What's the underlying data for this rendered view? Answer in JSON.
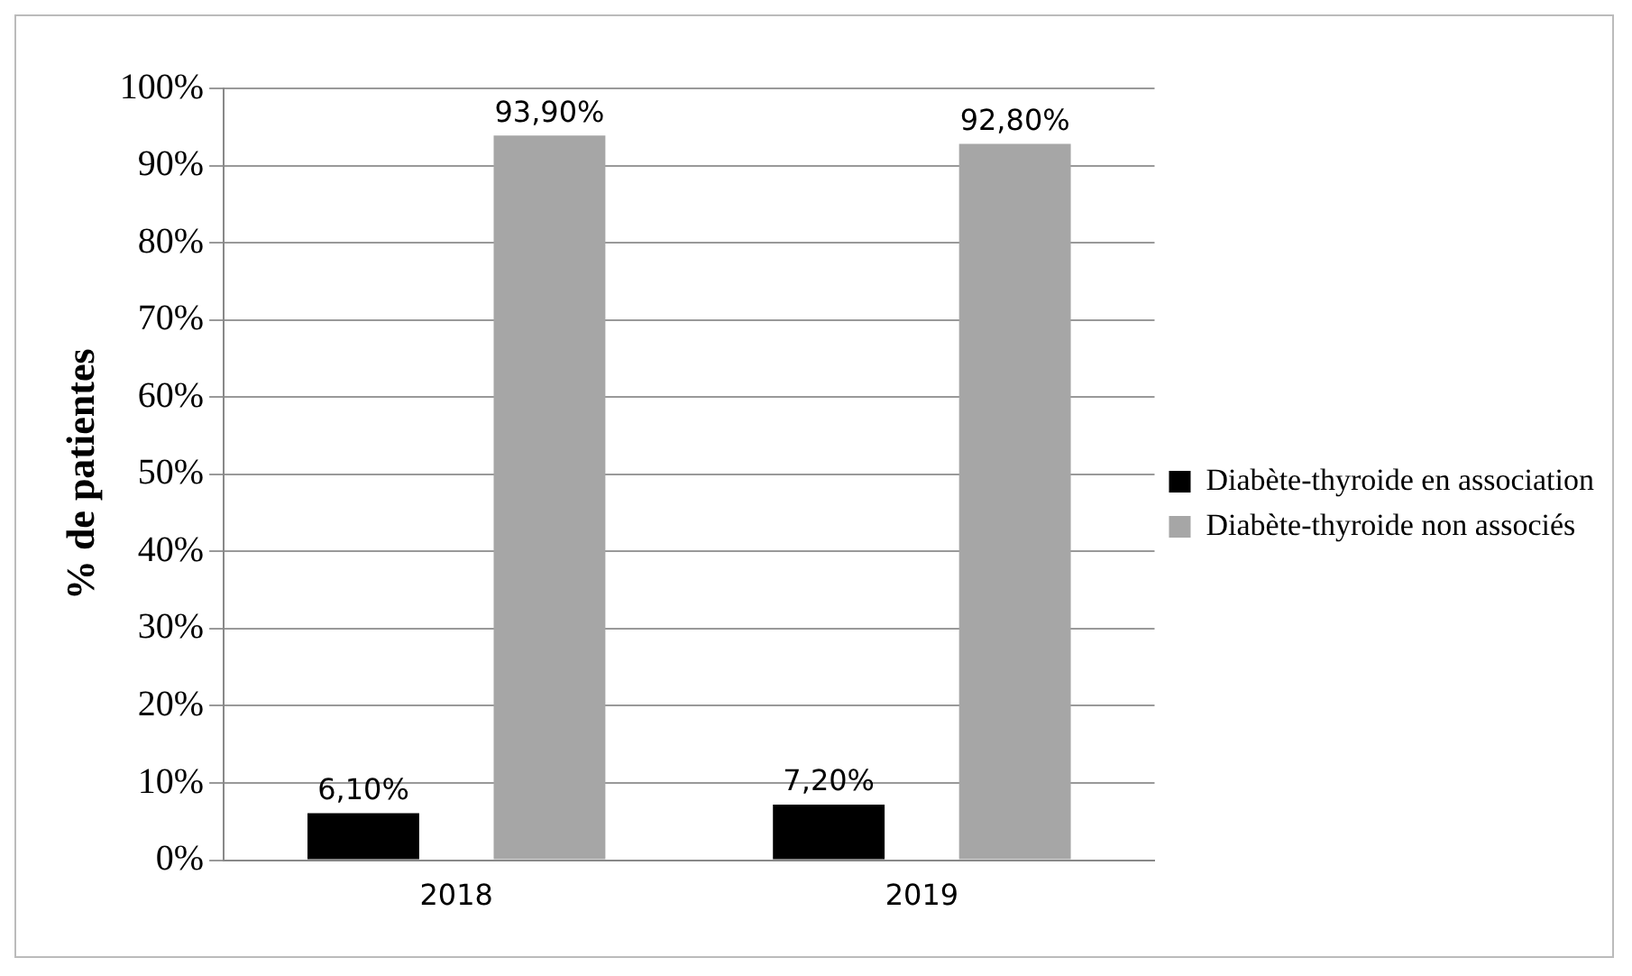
{
  "chart_data": {
    "type": "bar",
    "ylabel": "% de patientes",
    "categories": [
      "2018",
      "2019"
    ],
    "series": [
      {
        "name": "Diabète-thyroide en association",
        "color": "#000000",
        "values": [
          6.1,
          7.2
        ],
        "value_labels": [
          "6,10%",
          "7,20%"
        ]
      },
      {
        "name": "Diabète-thyroide non associés",
        "color": "#a6a6a6",
        "values": [
          93.9,
          92.8
        ],
        "value_labels": [
          "93,90%",
          "92,80%"
        ]
      }
    ],
    "ylim": [
      0,
      100
    ],
    "yticks": [
      {
        "value": 0,
        "label": "0%"
      },
      {
        "value": 10,
        "label": "10%"
      },
      {
        "value": 20,
        "label": "20%"
      },
      {
        "value": 30,
        "label": "30%"
      },
      {
        "value": 40,
        "label": "40%"
      },
      {
        "value": 50,
        "label": "50%"
      },
      {
        "value": 60,
        "label": "60%"
      },
      {
        "value": 70,
        "label": "70%"
      },
      {
        "value": 80,
        "label": "80%"
      },
      {
        "value": 90,
        "label": "90%"
      },
      {
        "value": 100,
        "label": "100%"
      }
    ],
    "grid": "y",
    "legend": "right"
  }
}
